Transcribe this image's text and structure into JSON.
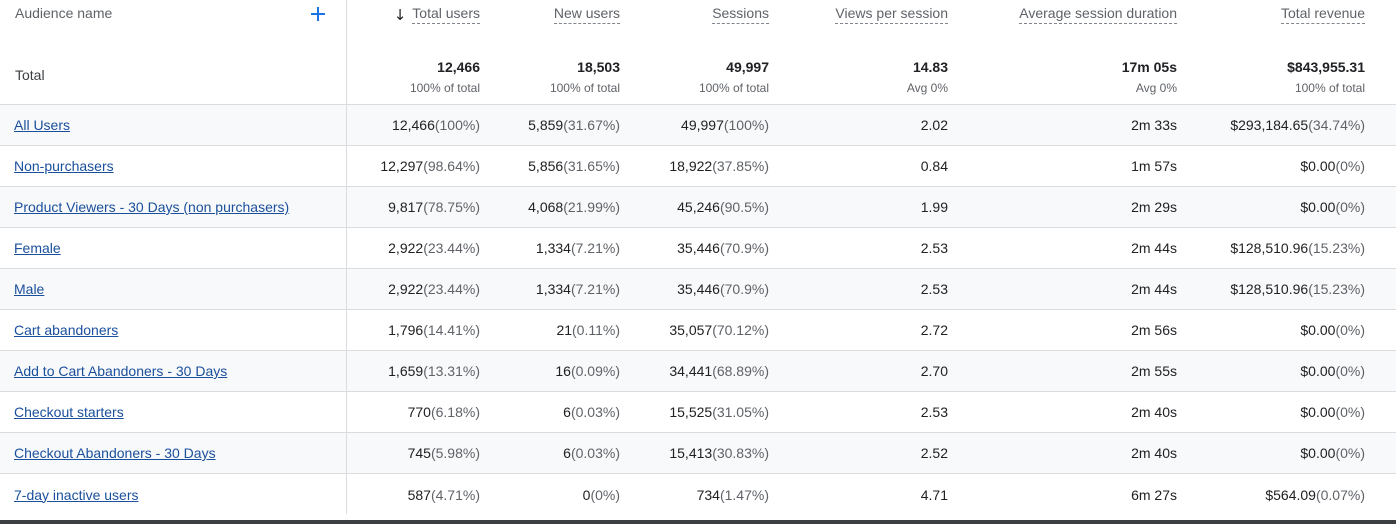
{
  "header": {
    "audience_name": "Audience name",
    "columns": [
      "Total users",
      "New users",
      "Sessions",
      "Views per session",
      "Average session duration",
      "Total revenue"
    ]
  },
  "total": {
    "label": "Total",
    "values": [
      {
        "value": "12,466",
        "sub": "100% of total"
      },
      {
        "value": "18,503",
        "sub": "100% of total"
      },
      {
        "value": "49,997",
        "sub": "100% of total"
      },
      {
        "value": "14.83",
        "sub": "Avg 0%"
      },
      {
        "value": "17m 05s",
        "sub": "Avg 0%"
      },
      {
        "value": "$843,955.31",
        "sub": "100% of total"
      }
    ]
  },
  "rows": [
    {
      "name": "All Users",
      "cells": [
        [
          "12,466",
          " (100%)"
        ],
        [
          "5,859",
          " (31.67%)"
        ],
        [
          "49,997",
          " (100%)"
        ],
        [
          "2.02",
          ""
        ],
        [
          "2m 33s",
          ""
        ],
        [
          "$293,184.65",
          " (34.74%)"
        ]
      ]
    },
    {
      "name": "Non-purchasers",
      "cells": [
        [
          "12,297",
          " (98.64%)"
        ],
        [
          "5,856",
          " (31.65%)"
        ],
        [
          "18,922",
          " (37.85%)"
        ],
        [
          "0.84",
          ""
        ],
        [
          "1m 57s",
          ""
        ],
        [
          "$0.00",
          " (0%)"
        ]
      ]
    },
    {
      "name": "Product Viewers - 30 Days (non purchasers)",
      "cells": [
        [
          "9,817",
          " (78.75%)"
        ],
        [
          "4,068",
          " (21.99%)"
        ],
        [
          "45,246",
          " (90.5%)"
        ],
        [
          "1.99",
          ""
        ],
        [
          "2m 29s",
          ""
        ],
        [
          "$0.00",
          " (0%)"
        ]
      ]
    },
    {
      "name": "Female",
      "cells": [
        [
          "2,922",
          " (23.44%)"
        ],
        [
          "1,334",
          " (7.21%)"
        ],
        [
          "35,446",
          " (70.9%)"
        ],
        [
          "2.53",
          ""
        ],
        [
          "2m 44s",
          ""
        ],
        [
          "$128,510.96",
          " (15.23%)"
        ]
      ]
    },
    {
      "name": "Male",
      "cells": [
        [
          "2,922",
          " (23.44%)"
        ],
        [
          "1,334",
          " (7.21%)"
        ],
        [
          "35,446",
          " (70.9%)"
        ],
        [
          "2.53",
          ""
        ],
        [
          "2m 44s",
          ""
        ],
        [
          "$128,510.96",
          " (15.23%)"
        ]
      ]
    },
    {
      "name": "Cart abandoners",
      "cells": [
        [
          "1,796",
          " (14.41%)"
        ],
        [
          "21",
          " (0.11%)"
        ],
        [
          "35,057",
          " (70.12%)"
        ],
        [
          "2.72",
          ""
        ],
        [
          "2m 56s",
          ""
        ],
        [
          "$0.00",
          " (0%)"
        ]
      ]
    },
    {
      "name": "Add to Cart Abandoners - 30 Days",
      "cells": [
        [
          "1,659",
          " (13.31%)"
        ],
        [
          "16",
          " (0.09%)"
        ],
        [
          "34,441",
          " (68.89%)"
        ],
        [
          "2.70",
          ""
        ],
        [
          "2m 55s",
          ""
        ],
        [
          "$0.00",
          " (0%)"
        ]
      ]
    },
    {
      "name": "Checkout starters",
      "cells": [
        [
          "770",
          " (6.18%)"
        ],
        [
          "6",
          " (0.03%)"
        ],
        [
          "15,525",
          " (31.05%)"
        ],
        [
          "2.53",
          ""
        ],
        [
          "2m 40s",
          ""
        ],
        [
          "$0.00",
          " (0%)"
        ]
      ]
    },
    {
      "name": "Checkout Abandoners - 30 Days",
      "cells": [
        [
          "745",
          " (5.98%)"
        ],
        [
          "6",
          " (0.03%)"
        ],
        [
          "15,413",
          " (30.83%)"
        ],
        [
          "2.52",
          ""
        ],
        [
          "2m 40s",
          ""
        ],
        [
          "$0.00",
          " (0%)"
        ]
      ]
    },
    {
      "name": "7-day inactive users",
      "cells": [
        [
          "587",
          " (4.71%)"
        ],
        [
          "0",
          " (0%)"
        ],
        [
          "734",
          " (1.47%)"
        ],
        [
          "4.71",
          ""
        ],
        [
          "6m 27s",
          ""
        ],
        [
          "$564.09",
          " (0.07%)"
        ]
      ]
    }
  ]
}
